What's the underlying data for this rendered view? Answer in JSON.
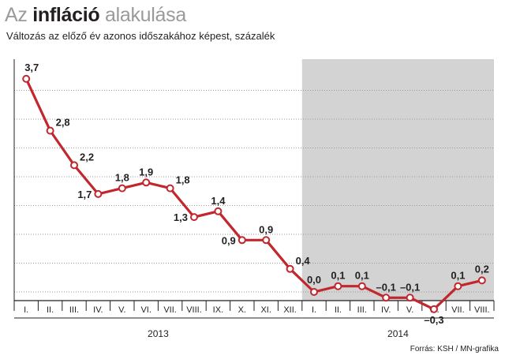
{
  "title": {
    "part1": "Az",
    "part2": "infláció",
    "part3": "alakulása"
  },
  "subtitle": "Változás az előző év azonos időszakához képest, százalék",
  "source": "Forrás: KSH / MN-grafika",
  "colors": {
    "line": "#c1272d",
    "shade": "#d3d3d3",
    "grid": "#9a9a9a",
    "text": "#231f20"
  },
  "chart_data": {
    "type": "line",
    "title": "Az infláció alakulása",
    "subtitle": "Változás az előző év azonos időszakához képest, százalék",
    "ylim": [
      -0.2,
      4.0
    ],
    "gridlines": [
      0,
      0.5,
      1,
      1.5,
      2,
      2.5,
      3,
      3.5
    ],
    "categories": [
      "I.",
      "II.",
      "III.",
      "IV.",
      "V.",
      "VI.",
      "VII.",
      "VIII.",
      "IX.",
      "X.",
      "XI.",
      "XII.",
      "I.",
      "II.",
      "III.",
      "IV.",
      "V.",
      "VI.",
      "VII.",
      "VIII."
    ],
    "years": [
      {
        "label": "2013",
        "start": 0,
        "end": 11
      },
      {
        "label": "2014",
        "start": 12,
        "end": 19
      }
    ],
    "shaded_from_index": 12,
    "series": [
      {
        "name": "Infláció",
        "values": [
          3.7,
          2.8,
          2.2,
          1.7,
          1.8,
          1.9,
          1.8,
          1.3,
          1.4,
          0.9,
          0.9,
          0.4,
          0.0,
          0.1,
          0.1,
          -0.1,
          -0.1,
          -0.3,
          0.1,
          0.2
        ],
        "labels": [
          "3,7",
          "2,8",
          "2,2",
          "1,7",
          "1,8",
          "1,9",
          "1,8",
          "1,3",
          "1,4",
          "0,9",
          "0,9",
          "0,4",
          "0,0",
          "0,1",
          "0,1",
          "–0,1",
          "–0,1",
          "–0,3",
          "0,1",
          "0,2"
        ]
      }
    ]
  }
}
